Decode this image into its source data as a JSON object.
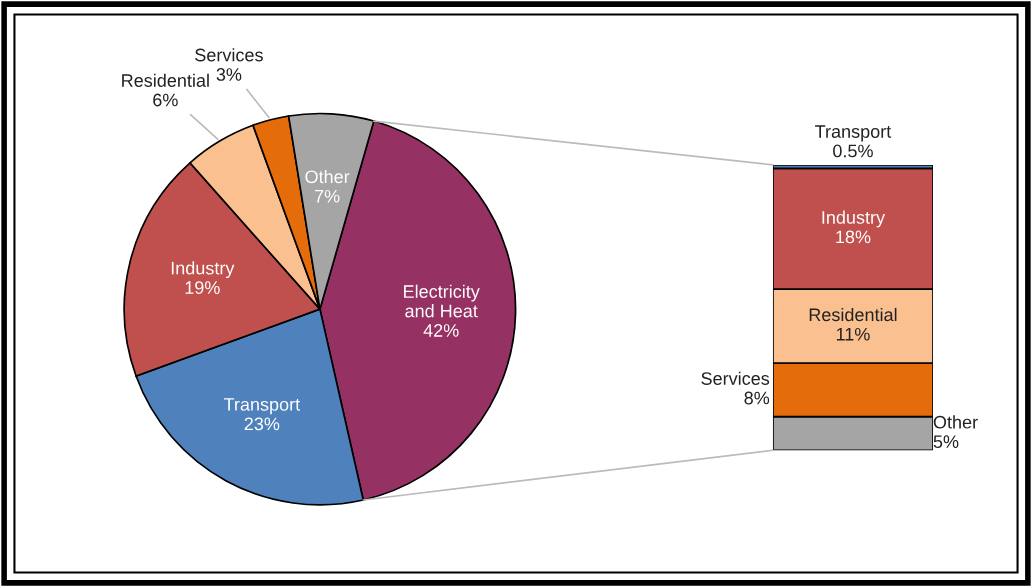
{
  "chart_data": [
    {
      "type": "pie",
      "categories": [
        "Electricity\nand Heat",
        "Transport",
        "Industry",
        "Residential",
        "Services",
        "Other"
      ],
      "values": [
        42,
        23,
        19,
        6,
        3,
        7
      ],
      "value_labels": [
        "42%",
        "23%",
        "19%",
        "6%",
        "3%",
        "7%"
      ],
      "colors": [
        "#953163",
        "#4f81bd",
        "#c0504d",
        "#fac090",
        "#e46c0a",
        "#a5a5a5"
      ]
    },
    {
      "type": "bar",
      "stacked": true,
      "categories": [
        null
      ],
      "series": [
        {
          "name": "Other",
          "color": "#a5a5a5",
          "values": [
            5
          ],
          "value_labels": [
            "5%"
          ]
        },
        {
          "name": "Services",
          "color": "#e46c0a",
          "values": [
            8
          ],
          "value_labels": [
            "8%"
          ]
        },
        {
          "name": "Residential",
          "color": "#fac090",
          "values": [
            11
          ],
          "value_labels": [
            "11%"
          ]
        },
        {
          "name": "Industry",
          "color": "#c0504d",
          "values": [
            18
          ],
          "value_labels": [
            "18%"
          ]
        },
        {
          "name": "Transport",
          "color": "#4f81bd",
          "values": [
            0.5
          ],
          "value_labels": [
            "0.5%"
          ]
        }
      ]
    }
  ]
}
